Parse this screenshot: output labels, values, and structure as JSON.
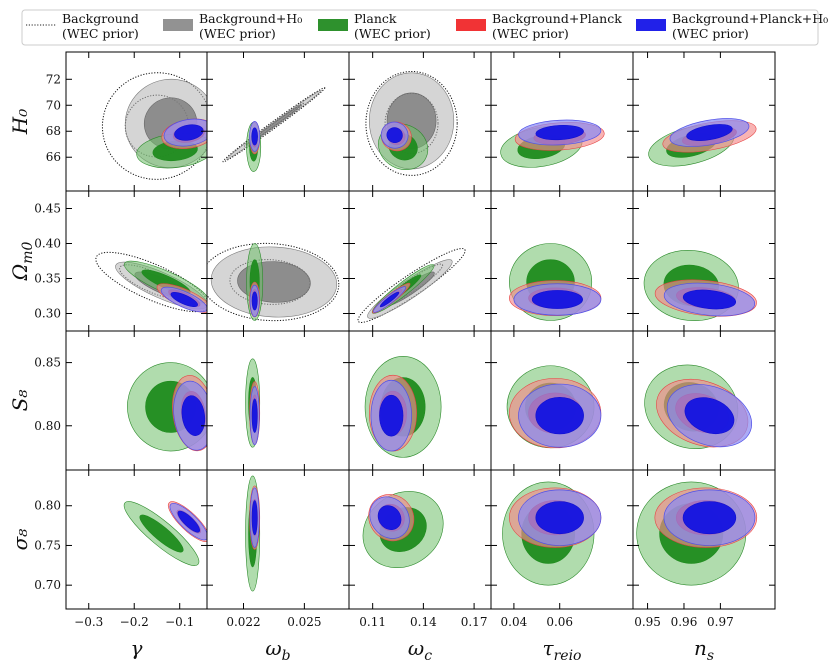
{
  "chart_data": {
    "type": "corner-contour",
    "title": "",
    "legend": {
      "placement": "top",
      "entries": [
        {
          "name": "Background",
          "sub": "(WEC prior)",
          "style": "dotted-line",
          "color": "#222222"
        },
        {
          "name": "Background+H₀",
          "sub": "(WEC prior)",
          "style": "fill",
          "color": "#8c8c8c"
        },
        {
          "name": "Planck",
          "sub": "(WEC prior)",
          "style": "fill",
          "color": "#238b22"
        },
        {
          "name": "Background+Planck",
          "sub": "(WEC prior)",
          "style": "fill",
          "color": "#f0282a"
        },
        {
          "name": "Background+Planck+H₀",
          "sub": "(WEC prior)",
          "style": "fill",
          "color": "#1515e8"
        }
      ]
    },
    "columns": [
      {
        "param": "gamma",
        "label": "γ",
        "range": [
          -0.35,
          -0.04
        ],
        "ticks": [
          -0.3,
          -0.2,
          -0.1
        ],
        "tick_labels": [
          "−0.3",
          "−0.2",
          "−0.1"
        ]
      },
      {
        "param": "omega_b",
        "label": "ω_b",
        "range": [
          0.0202,
          0.0272
        ],
        "ticks": [
          0.022,
          0.025
        ],
        "tick_labels": [
          "0.022",
          "0.025"
        ]
      },
      {
        "param": "omega_c",
        "label": "ω_c",
        "range": [
          0.096,
          0.18
        ],
        "ticks": [
          0.11,
          0.14,
          0.17
        ],
        "tick_labels": [
          "0.11",
          "0.14",
          "0.17"
        ]
      },
      {
        "param": "tau_reio",
        "label": "τ_reio",
        "range": [
          0.03,
          0.092
        ],
        "ticks": [
          0.04,
          0.06
        ],
        "tick_labels": [
          "0.04",
          "0.06"
        ]
      },
      {
        "param": "n_s",
        "label": "n_s",
        "range": [
          0.946,
          0.985
        ],
        "ticks": [
          0.95,
          0.96,
          0.97
        ],
        "tick_labels": [
          "0.95",
          "0.96",
          "0.97"
        ]
      }
    ],
    "rows": [
      {
        "param": "H0",
        "label": "H₀",
        "range": [
          63.4,
          74.1
        ],
        "ticks": [
          66,
          68,
          70,
          72
        ],
        "tick_labels": [
          "66",
          "68",
          "70",
          "72"
        ]
      },
      {
        "param": "Omega_m0",
        "label": "Ω_m0",
        "range": [
          0.275,
          0.475
        ],
        "ticks": [
          0.3,
          0.35,
          0.4,
          0.45
        ],
        "tick_labels": [
          "0.30",
          "0.35",
          "0.40",
          "0.45"
        ]
      },
      {
        "param": "S8",
        "label": "S₈",
        "range": [
          0.765,
          0.875
        ],
        "ticks": [
          0.8,
          0.85
        ],
        "tick_labels": [
          "0.80",
          "0.85"
        ]
      },
      {
        "param": "sigma8",
        "label": "σ₈",
        "range": [
          0.67,
          0.845
        ],
        "ticks": [
          0.7,
          0.75,
          0.8
        ],
        "tick_labels": [
          "0.70",
          "0.75",
          "0.80"
        ]
      }
    ],
    "contours": [
      {
        "series": 0,
        "col": 0,
        "row": 0,
        "cx": -0.15,
        "cy": 68.4,
        "sx": 0.24,
        "sy": 8.2,
        "angle": 10
      },
      {
        "series": 1,
        "col": 0,
        "row": 0,
        "cx": -0.12,
        "cy": 68.6,
        "sx": 0.2,
        "sy": 6.8,
        "angle": 12
      },
      {
        "series": 2,
        "col": 0,
        "row": 0,
        "cx": -0.11,
        "cy": 66.5,
        "sx": 0.17,
        "sy": 2.6,
        "angle": 6
      },
      {
        "series": 3,
        "col": 0,
        "row": 0,
        "cx": -0.08,
        "cy": 67.8,
        "sx": 0.12,
        "sy": 2.2,
        "angle": 10
      },
      {
        "series": 4,
        "col": 0,
        "row": 0,
        "cx": -0.08,
        "cy": 67.9,
        "sx": 0.11,
        "sy": 2.0,
        "angle": 10
      },
      {
        "series": 0,
        "col": 1,
        "row": 0,
        "cx": 0.0235,
        "cy": 68.5,
        "sx": 0.0062,
        "sy": 0.5,
        "angle": 36
      },
      {
        "series": 1,
        "col": 1,
        "row": 0,
        "cx": 0.0235,
        "cy": 68.5,
        "sx": 0.0058,
        "sy": 0.35,
        "angle": 36
      },
      {
        "series": 2,
        "col": 1,
        "row": 0,
        "cx": 0.0225,
        "cy": 66.8,
        "sx": 0.0007,
        "sy": 3.8,
        "angle": 0
      },
      {
        "series": 3,
        "col": 1,
        "row": 0,
        "cx": 0.02255,
        "cy": 67.5,
        "sx": 0.0005,
        "sy": 2.5,
        "angle": 0
      },
      {
        "series": 4,
        "col": 1,
        "row": 0,
        "cx": 0.02255,
        "cy": 67.6,
        "sx": 0.0005,
        "sy": 2.3,
        "angle": 0
      },
      {
        "series": 0,
        "col": 2,
        "row": 0,
        "cx": 0.133,
        "cy": 68.6,
        "sx": 0.054,
        "sy": 8.0,
        "angle": 0
      },
      {
        "series": 1,
        "col": 2,
        "row": 0,
        "cx": 0.133,
        "cy": 68.8,
        "sx": 0.05,
        "sy": 7.4,
        "angle": 0
      },
      {
        "series": 2,
        "col": 2,
        "row": 0,
        "cx": 0.128,
        "cy": 66.8,
        "sx": 0.03,
        "sy": 3.4,
        "angle": -28
      },
      {
        "series": 3,
        "col": 2,
        "row": 0,
        "cx": 0.124,
        "cy": 67.6,
        "sx": 0.018,
        "sy": 2.2,
        "angle": -22
      },
      {
        "series": 4,
        "col": 2,
        "row": 0,
        "cx": 0.123,
        "cy": 67.7,
        "sx": 0.016,
        "sy": 2.0,
        "angle": -22
      },
      {
        "series": 2,
        "col": 3,
        "row": 0,
        "cx": 0.052,
        "cy": 66.8,
        "sx": 0.036,
        "sy": 3.0,
        "angle": 10
      },
      {
        "series": 3,
        "col": 3,
        "row": 0,
        "cx": 0.06,
        "cy": 67.6,
        "sx": 0.039,
        "sy": 2.1,
        "angle": 4
      },
      {
        "series": 4,
        "col": 3,
        "row": 0,
        "cx": 0.06,
        "cy": 67.9,
        "sx": 0.036,
        "sy": 1.9,
        "angle": 3
      },
      {
        "series": 2,
        "col": 4,
        "row": 0,
        "cx": 0.962,
        "cy": 66.9,
        "sx": 0.024,
        "sy": 2.8,
        "angle": 14
      },
      {
        "series": 3,
        "col": 4,
        "row": 0,
        "cx": 0.967,
        "cy": 67.6,
        "sx": 0.026,
        "sy": 2.1,
        "angle": 10
      },
      {
        "series": 4,
        "col": 4,
        "row": 0,
        "cx": 0.967,
        "cy": 67.9,
        "sx": 0.022,
        "sy": 1.9,
        "angle": 10
      },
      {
        "series": 0,
        "col": 0,
        "row": 1,
        "cx": -0.16,
        "cy": 0.345,
        "sx": 0.27,
        "sy": 0.05,
        "angle": -24
      },
      {
        "series": 1,
        "col": 0,
        "row": 1,
        "cx": -0.14,
        "cy": 0.34,
        "sx": 0.22,
        "sy": 0.036,
        "angle": -24
      },
      {
        "series": 2,
        "col": 0,
        "row": 1,
        "cx": -0.13,
        "cy": 0.345,
        "sx": 0.2,
        "sy": 0.03,
        "angle": -24
      },
      {
        "series": 3,
        "col": 0,
        "row": 1,
        "cx": -0.09,
        "cy": 0.322,
        "sx": 0.13,
        "sy": 0.025,
        "angle": -24
      },
      {
        "series": 4,
        "col": 0,
        "row": 1,
        "cx": -0.09,
        "cy": 0.32,
        "sx": 0.11,
        "sy": 0.022,
        "angle": -24
      },
      {
        "series": 0,
        "col": 1,
        "row": 1,
        "cx": 0.0233,
        "cy": 0.345,
        "sx": 0.0068,
        "sy": 0.11,
        "angle": -3
      },
      {
        "series": 1,
        "col": 1,
        "row": 1,
        "cx": 0.0235,
        "cy": 0.345,
        "sx": 0.0062,
        "sy": 0.1,
        "angle": -3
      },
      {
        "series": 2,
        "col": 1,
        "row": 1,
        "cx": 0.02255,
        "cy": 0.345,
        "sx": 0.0008,
        "sy": 0.11,
        "angle": 0
      },
      {
        "series": 3,
        "col": 1,
        "row": 1,
        "cx": 0.02255,
        "cy": 0.32,
        "sx": 0.0005,
        "sy": 0.05,
        "angle": 0
      },
      {
        "series": 4,
        "col": 1,
        "row": 1,
        "cx": 0.02255,
        "cy": 0.318,
        "sx": 0.00045,
        "sy": 0.045,
        "angle": 0
      },
      {
        "series": 0,
        "col": 2,
        "row": 1,
        "cx": 0.133,
        "cy": 0.34,
        "sx": 0.076,
        "sy": 0.03,
        "angle": 34
      },
      {
        "series": 1,
        "col": 2,
        "row": 1,
        "cx": 0.132,
        "cy": 0.335,
        "sx": 0.06,
        "sy": 0.026,
        "angle": 34
      },
      {
        "series": 2,
        "col": 2,
        "row": 1,
        "cx": 0.128,
        "cy": 0.335,
        "sx": 0.046,
        "sy": 0.018,
        "angle": 38
      },
      {
        "series": 3,
        "col": 2,
        "row": 1,
        "cx": 0.121,
        "cy": 0.322,
        "sx": 0.028,
        "sy": 0.012,
        "angle": 38
      },
      {
        "series": 4,
        "col": 2,
        "row": 1,
        "cx": 0.12,
        "cy": 0.32,
        "sx": 0.024,
        "sy": 0.011,
        "angle": 38
      },
      {
        "series": 2,
        "col": 3,
        "row": 1,
        "cx": 0.056,
        "cy": 0.345,
        "sx": 0.036,
        "sy": 0.11,
        "angle": 0
      },
      {
        "series": 3,
        "col": 3,
        "row": 1,
        "cx": 0.058,
        "cy": 0.322,
        "sx": 0.04,
        "sy": 0.05,
        "angle": 0
      },
      {
        "series": 4,
        "col": 3,
        "row": 1,
        "cx": 0.059,
        "cy": 0.32,
        "sx": 0.038,
        "sy": 0.045,
        "angle": 0
      },
      {
        "series": 2,
        "col": 4,
        "row": 1,
        "cx": 0.962,
        "cy": 0.34,
        "sx": 0.026,
        "sy": 0.1,
        "angle": -6
      },
      {
        "series": 3,
        "col": 4,
        "row": 1,
        "cx": 0.966,
        "cy": 0.322,
        "sx": 0.028,
        "sy": 0.05,
        "angle": -6
      },
      {
        "series": 4,
        "col": 4,
        "row": 1,
        "cx": 0.967,
        "cy": 0.32,
        "sx": 0.025,
        "sy": 0.045,
        "angle": -6
      },
      {
        "series": 2,
        "col": 0,
        "row": 2,
        "cx": -0.12,
        "cy": 0.815,
        "sx": 0.19,
        "sy": 0.07,
        "angle": 6
      },
      {
        "series": 3,
        "col": 0,
        "row": 2,
        "cx": -0.07,
        "cy": 0.81,
        "sx": 0.09,
        "sy": 0.06,
        "angle": 8
      },
      {
        "series": 4,
        "col": 0,
        "row": 2,
        "cx": -0.07,
        "cy": 0.808,
        "sx": 0.085,
        "sy": 0.055,
        "angle": 8
      },
      {
        "series": 2,
        "col": 1,
        "row": 2,
        "cx": 0.02245,
        "cy": 0.818,
        "sx": 0.0007,
        "sy": 0.07,
        "angle": 0
      },
      {
        "series": 3,
        "col": 1,
        "row": 2,
        "cx": 0.02255,
        "cy": 0.81,
        "sx": 0.0005,
        "sy": 0.05,
        "angle": 0
      },
      {
        "series": 4,
        "col": 1,
        "row": 2,
        "cx": 0.02255,
        "cy": 0.808,
        "sx": 0.00045,
        "sy": 0.046,
        "angle": 0
      },
      {
        "series": 2,
        "col": 2,
        "row": 2,
        "cx": 0.128,
        "cy": 0.815,
        "sx": 0.045,
        "sy": 0.08,
        "angle": 0
      },
      {
        "series": 3,
        "col": 2,
        "row": 2,
        "cx": 0.122,
        "cy": 0.81,
        "sx": 0.028,
        "sy": 0.06,
        "angle": 0
      },
      {
        "series": 4,
        "col": 2,
        "row": 2,
        "cx": 0.121,
        "cy": 0.808,
        "sx": 0.024,
        "sy": 0.056,
        "angle": 0
      },
      {
        "series": 2,
        "col": 3,
        "row": 2,
        "cx": 0.056,
        "cy": 0.815,
        "sx": 0.038,
        "sy": 0.065,
        "angle": 0
      },
      {
        "series": 3,
        "col": 3,
        "row": 2,
        "cx": 0.058,
        "cy": 0.81,
        "sx": 0.04,
        "sy": 0.055,
        "angle": 0
      },
      {
        "series": 4,
        "col": 3,
        "row": 2,
        "cx": 0.06,
        "cy": 0.808,
        "sx": 0.036,
        "sy": 0.05,
        "angle": 0
      },
      {
        "series": 2,
        "col": 4,
        "row": 2,
        "cx": 0.962,
        "cy": 0.815,
        "sx": 0.026,
        "sy": 0.065,
        "angle": -20
      },
      {
        "series": 3,
        "col": 4,
        "row": 2,
        "cx": 0.965,
        "cy": 0.81,
        "sx": 0.026,
        "sy": 0.05,
        "angle": -20
      },
      {
        "series": 4,
        "col": 4,
        "row": 2,
        "cx": 0.967,
        "cy": 0.808,
        "sx": 0.024,
        "sy": 0.046,
        "angle": -20
      },
      {
        "series": 2,
        "col": 0,
        "row": 3,
        "cx": -0.14,
        "cy": 0.765,
        "sx": 0.21,
        "sy": 0.03,
        "angle": -40
      },
      {
        "series": 3,
        "col": 0,
        "row": 3,
        "cx": -0.08,
        "cy": 0.78,
        "sx": 0.12,
        "sy": 0.022,
        "angle": -44
      },
      {
        "series": 4,
        "col": 0,
        "row": 3,
        "cx": -0.08,
        "cy": 0.78,
        "sx": 0.11,
        "sy": 0.02,
        "angle": -44
      },
      {
        "series": 2,
        "col": 1,
        "row": 3,
        "cx": 0.02245,
        "cy": 0.765,
        "sx": 0.0007,
        "sy": 0.145,
        "angle": 0
      },
      {
        "series": 3,
        "col": 1,
        "row": 3,
        "cx": 0.02255,
        "cy": 0.785,
        "sx": 0.0005,
        "sy": 0.08,
        "angle": 0
      },
      {
        "series": 4,
        "col": 1,
        "row": 3,
        "cx": 0.02255,
        "cy": 0.785,
        "sx": 0.00045,
        "sy": 0.075,
        "angle": 0
      },
      {
        "series": 2,
        "col": 2,
        "row": 3,
        "cx": 0.128,
        "cy": 0.77,
        "sx": 0.05,
        "sy": 0.09,
        "angle": 36
      },
      {
        "series": 3,
        "col": 2,
        "row": 3,
        "cx": 0.121,
        "cy": 0.785,
        "sx": 0.026,
        "sy": 0.06,
        "angle": 36
      },
      {
        "series": 4,
        "col": 2,
        "row": 3,
        "cx": 0.12,
        "cy": 0.785,
        "sx": 0.022,
        "sy": 0.055,
        "angle": 36
      },
      {
        "series": 2,
        "col": 3,
        "row": 3,
        "cx": 0.055,
        "cy": 0.765,
        "sx": 0.04,
        "sy": 0.13,
        "angle": 0
      },
      {
        "series": 3,
        "col": 3,
        "row": 3,
        "cx": 0.058,
        "cy": 0.785,
        "sx": 0.04,
        "sy": 0.075,
        "angle": 0
      },
      {
        "series": 4,
        "col": 3,
        "row": 3,
        "cx": 0.06,
        "cy": 0.785,
        "sx": 0.036,
        "sy": 0.07,
        "angle": 0
      },
      {
        "series": 2,
        "col": 4,
        "row": 3,
        "cx": 0.962,
        "cy": 0.765,
        "sx": 0.03,
        "sy": 0.13,
        "angle": 0
      },
      {
        "series": 3,
        "col": 4,
        "row": 3,
        "cx": 0.966,
        "cy": 0.785,
        "sx": 0.028,
        "sy": 0.075,
        "angle": 0
      },
      {
        "series": 4,
        "col": 4,
        "row": 3,
        "cx": 0.967,
        "cy": 0.785,
        "sx": 0.025,
        "sy": 0.07,
        "angle": 0
      }
    ]
  }
}
